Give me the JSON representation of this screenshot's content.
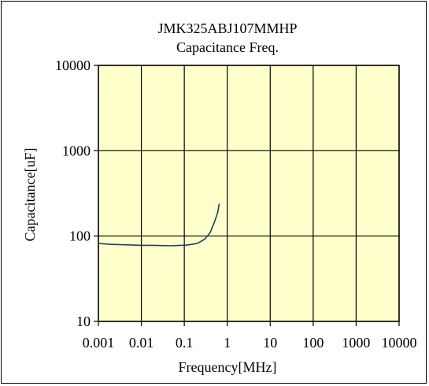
{
  "chart_data": {
    "type": "line",
    "title": "JMK325ABJ107MMHP",
    "subtitle": "Capacitance Freq.",
    "xlabel": "Frequency[MHz]",
    "ylabel": "Capacitance[uF]",
    "xscale": "log",
    "yscale": "log",
    "xlim": [
      0.001,
      10000
    ],
    "ylim": [
      10,
      10000
    ],
    "xticks": [
      0.001,
      0.01,
      0.1,
      1,
      10,
      100,
      1000,
      10000
    ],
    "xtick_labels": [
      "0.001",
      "0.01",
      "0.1",
      "1",
      "10",
      "100",
      "1000",
      "10000"
    ],
    "yticks": [
      10,
      100,
      1000,
      10000
    ],
    "ytick_labels": [
      "10",
      "100",
      "1000",
      "10000"
    ],
    "grid": true,
    "plot_background": "#ffffcc",
    "series": [
      {
        "color": "#1f3f5f",
        "x": [
          0.001,
          0.002,
          0.005,
          0.01,
          0.02,
          0.05,
          0.08,
          0.1,
          0.15,
          0.2,
          0.3,
          0.4,
          0.5,
          0.6,
          0.65
        ],
        "y": [
          82,
          80,
          79,
          78,
          78,
          77,
          78,
          78,
          80,
          82,
          92,
          110,
          145,
          190,
          240
        ]
      }
    ]
  }
}
